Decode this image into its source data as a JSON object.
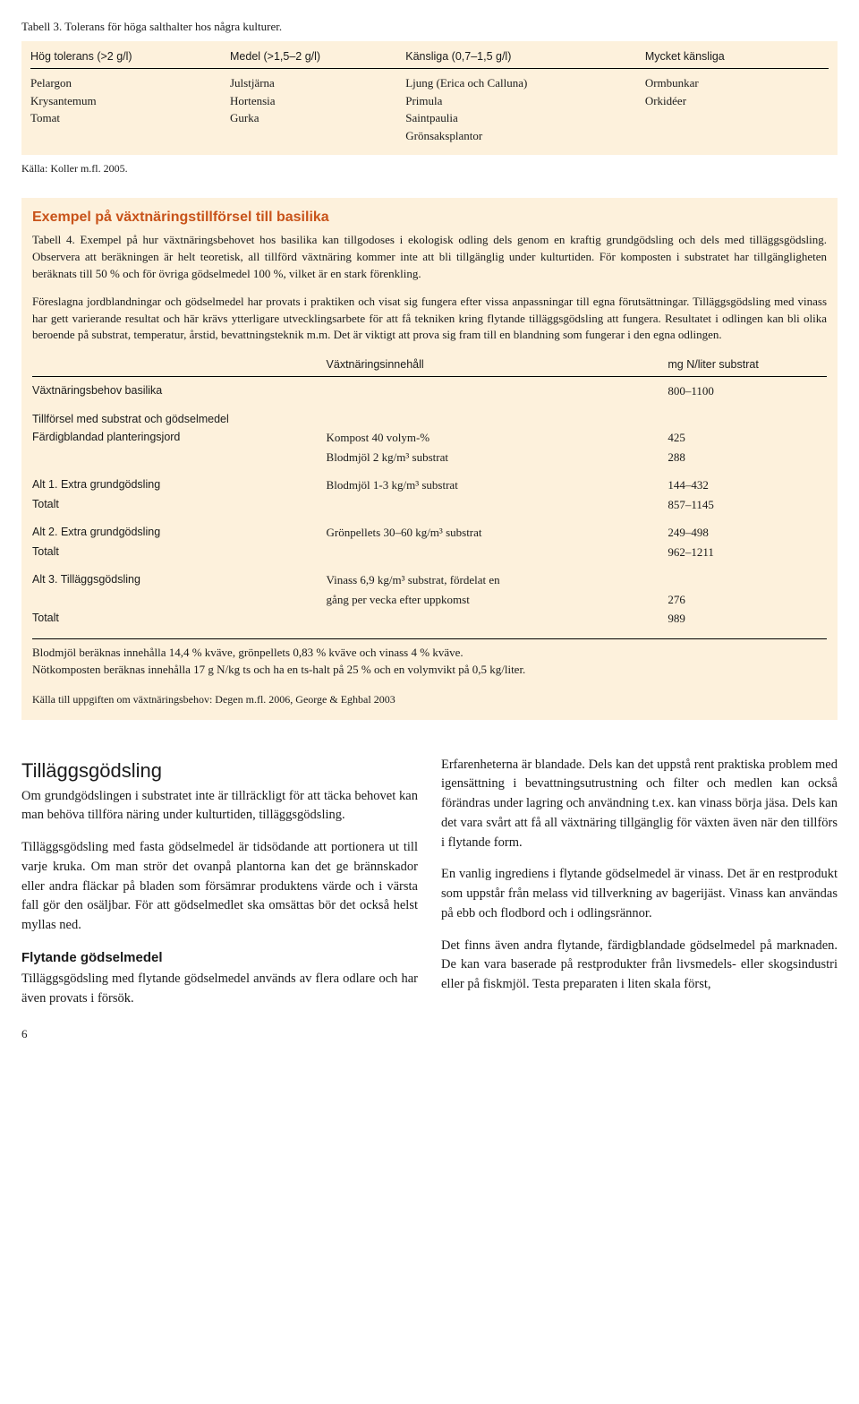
{
  "table3": {
    "caption": "Tabell 3. Tolerans för höga salthalter hos några kulturer.",
    "headers": [
      "Hög tolerans (>2 g/l)",
      "Medel (>1,5–2 g/l)",
      "Känsliga (0,7–1,5 g/l)",
      "Mycket känsliga"
    ],
    "c1": [
      "Pelargon",
      "Krysantemum",
      "Tomat"
    ],
    "c2": [
      "Julstjärna",
      "Hortensia",
      "Gurka"
    ],
    "c3": [
      "Ljung (Erica och Calluna)",
      "Primula",
      "Saintpaulia",
      "Grönsaksplantor"
    ],
    "c4": [
      "Ormbunkar",
      "Orkidéer"
    ],
    "source": "Källa: Koller m.fl. 2005."
  },
  "section2": {
    "title": "Exempel på växtnäringstillförsel till basilika",
    "p1": "Tabell 4. Exempel på hur växtnäringsbehovet hos basilika kan tillgodoses i ekologisk odling dels genom en kraftig grundgödsling och dels med tilläggsgödsling. Observera att beräkningen är helt teoretisk, all tillförd växtnäring kommer inte att bli tillgänglig under kulturtiden. För komposten i substratet har tillgängligheten beräknats till 50 % och för övriga gödselmedel 100 %, vilket är en stark förenkling.",
    "p2": "Föreslagna jordblandningar och gödselmedel har provats i praktiken och visat sig fungera efter vissa anpassningar till egna förutsättningar. Tilläggsgödsling med vinass har gett varierande resultat och här krävs ytterligare utvecklingsarbete för att få tekniken kring flytande tilläggsgödsling att fungera. Resultatet i odlingen kan bli olika beroende på substrat, temperatur, årstid, bevattningsteknik m.m. Det är viktigt att prova sig fram till en blandning som fungerar i den egna odlingen.",
    "t4_headers": [
      "",
      "Växtnäringsinnehåll",
      "mg N/liter substrat"
    ],
    "r_behov": {
      "label": "Växtnäringsbehov basilika",
      "v2": "",
      "v3": "800–1100"
    },
    "r_tillf": "Tillförsel med substrat och gödselmedel",
    "r_fardig1": {
      "label": "Färdigblandad planteringsjord",
      "v2": "Kompost 40 volym-%",
      "v3": "425"
    },
    "r_fardig2": {
      "label": "",
      "v2": "Blodmjöl 2 kg/m³ substrat",
      "v3": "288"
    },
    "r_alt1": {
      "label": "Alt 1. Extra grundgödsling",
      "v2": "Blodmjöl 1-3 kg/m³ substrat",
      "v3": "144–432"
    },
    "r_alt1t": {
      "label": "Totalt",
      "v2": "",
      "v3": "857–1145"
    },
    "r_alt2": {
      "label": "Alt 2. Extra grundgödsling",
      "v2": "Grönpellets 30–60 kg/m³ substrat",
      "v3": "249–498"
    },
    "r_alt2t": {
      "label": "Totalt",
      "v2": "",
      "v3": "962–1211"
    },
    "r_alt3a": {
      "label": "Alt 3. Tilläggsgödsling",
      "v2": "Vinass 6,9 kg/m³ substrat, fördelat en",
      "v3": ""
    },
    "r_alt3b": {
      "label": "",
      "v2": "gång per vecka efter uppkomst",
      "v3": "276"
    },
    "r_alt3t": {
      "label": "Totalt",
      "v2": "",
      "v3": "989"
    },
    "footer1": "Blodmjöl beräknas innehålla 14,4 % kväve, grönpellets 0,83 % kväve och vinass 4 % kväve.",
    "footer2": "Nötkomposten beräknas innehålla 17 g N/kg ts och ha en ts-halt på 25 % och en volymvikt på 0,5 kg/liter.",
    "source2": "Källa till uppgiften om växtnäringsbehov: Degen m.fl. 2006, George & Eghbal 2003"
  },
  "body": {
    "h_tillags": "Tilläggsgödsling",
    "p_t1": "Om grundgödslingen i substratet inte är tillräckligt för att täcka behovet kan man behöva tillföra näring under kulturtiden, tilläggsgödsling.",
    "p_t2": "Tilläggsgödsling med fasta gödselmedel är tidsödande att portionera ut till varje kruka. Om man strör det ovanpå plantorna kan det ge brännskador eller andra fläckar på bladen som försämrar produktens värde och i värsta fall gör den osäljbar. För att gödselmedlet ska omsättas bör det också helst myllas ned.",
    "h_flytande": "Flytande gödselmedel",
    "p_f1": "Tilläggsgödsling med flytande gödselmedel används av flera odlare och har även provats i försök.",
    "p_r1": "Erfarenheterna är blandade. Dels kan det uppstå rent praktiska problem med igensättning i bevattningsutrustning och filter och medlen kan också förändras under lagring och användning t.ex. kan vinass börja jäsa. Dels kan det vara svårt att få all växtnäring tillgänglig för växten även när den tillförs i flytande form.",
    "p_r2": "En vanlig ingrediens i flytande gödselmedel är vinass. Det är en restprodukt som uppstår från melass vid tillverkning av bagerijäst. Vinass kan användas på ebb och flodbord och i odlingsrännor.",
    "p_r3": "Det finns även andra flytande, färdigblandade gödselmedel på marknaden. De kan vara baserade på restprodukter från livsmedels- eller skogsindustri eller på fiskmjöl. Testa preparaten i liten skala först,"
  },
  "page": "6"
}
